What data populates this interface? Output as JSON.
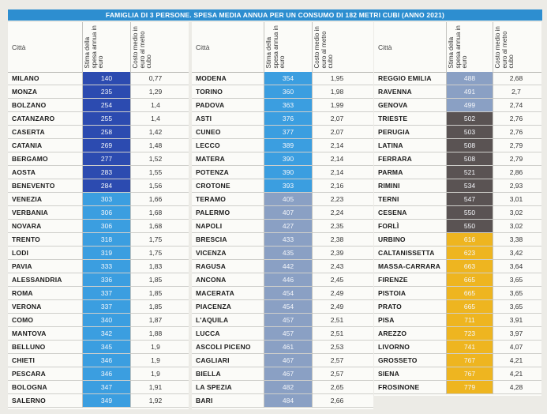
{
  "title": "FAMIGLIA DI 3 PERSONE. SPESA MEDIA ANNUA PER UN CONSUMO DI 182 METRI CUBI (ANNO 2021)",
  "headers": {
    "city": "Città",
    "estimate": "Stima della spesa annua in euro",
    "cost": "Costo medio in euro al metro cubo"
  },
  "colors": {
    "dark_blue": "#2c4bb0",
    "light_blue": "#3b9ee0",
    "grey_blue": "#8aa0c4",
    "dark_grey": "#5a5353",
    "yellow": "#eeb520"
  },
  "columns": [
    {
      "rows": [
        {
          "city": "MILANO",
          "value": "140",
          "cost": "0,77",
          "color": "dark_blue"
        },
        {
          "city": "MONZA",
          "value": "235",
          "cost": "1,29",
          "color": "dark_blue"
        },
        {
          "city": "BOLZANO",
          "value": "254",
          "cost": "1,4",
          "color": "dark_blue"
        },
        {
          "city": "CATANZARO",
          "value": "255",
          "cost": "1,4",
          "color": "dark_blue"
        },
        {
          "city": "CASERTA",
          "value": "258",
          "cost": "1,42",
          "color": "dark_blue"
        },
        {
          "city": "CATANIA",
          "value": "269",
          "cost": "1,48",
          "color": "dark_blue"
        },
        {
          "city": "BERGAMO",
          "value": "277",
          "cost": "1,52",
          "color": "dark_blue"
        },
        {
          "city": "AOSTA",
          "value": "283",
          "cost": "1,55",
          "color": "dark_blue"
        },
        {
          "city": "BENEVENTO",
          "value": "284",
          "cost": "1,56",
          "color": "dark_blue"
        },
        {
          "city": "VENEZIA",
          "value": "303",
          "cost": "1,66",
          "color": "light_blue"
        },
        {
          "city": "VERBANIA",
          "value": "306",
          "cost": "1,68",
          "color": "light_blue"
        },
        {
          "city": "NOVARA",
          "value": "306",
          "cost": "1,68",
          "color": "light_blue"
        },
        {
          "city": "TRENTO",
          "value": "318",
          "cost": "1,75",
          "color": "light_blue"
        },
        {
          "city": "LODI",
          "value": "319",
          "cost": "1,75",
          "color": "light_blue"
        },
        {
          "city": "PAVIA",
          "value": "333",
          "cost": "1,83",
          "color": "light_blue"
        },
        {
          "city": "ALESSANDRIA",
          "value": "336",
          "cost": "1,85",
          "color": "light_blue"
        },
        {
          "city": "ROMA",
          "value": "337",
          "cost": "1,85",
          "color": "light_blue"
        },
        {
          "city": "VERONA",
          "value": "337",
          "cost": "1,85",
          "color": "light_blue"
        },
        {
          "city": "COMO",
          "value": "340",
          "cost": "1,87",
          "color": "light_blue"
        },
        {
          "city": "MANTOVA",
          "value": "342",
          "cost": "1,88",
          "color": "light_blue"
        },
        {
          "city": "BELLUNO",
          "value": "345",
          "cost": "1,9",
          "color": "light_blue"
        },
        {
          "city": "CHIETI",
          "value": "346",
          "cost": "1,9",
          "color": "light_blue"
        },
        {
          "city": "PESCARA",
          "value": "346",
          "cost": "1,9",
          "color": "light_blue"
        },
        {
          "city": "BOLOGNA",
          "value": "347",
          "cost": "1,91",
          "color": "light_blue"
        },
        {
          "city": "SALERNO",
          "value": "349",
          "cost": "1,92",
          "color": "light_blue"
        }
      ]
    },
    {
      "rows": [
        {
          "city": "MODENA",
          "value": "354",
          "cost": "1,95",
          "color": "light_blue"
        },
        {
          "city": "TORINO",
          "value": "360",
          "cost": "1,98",
          "color": "light_blue"
        },
        {
          "city": "PADOVA",
          "value": "363",
          "cost": "1,99",
          "color": "light_blue"
        },
        {
          "city": "ASTI",
          "value": "376",
          "cost": "2,07",
          "color": "light_blue"
        },
        {
          "city": "CUNEO",
          "value": "377",
          "cost": "2,07",
          "color": "light_blue"
        },
        {
          "city": "LECCO",
          "value": "389",
          "cost": "2,14",
          "color": "light_blue"
        },
        {
          "city": "MATERA",
          "value": "390",
          "cost": "2,14",
          "color": "light_blue"
        },
        {
          "city": "POTENZA",
          "value": "390",
          "cost": "2,14",
          "color": "light_blue"
        },
        {
          "city": "CROTONE",
          "value": "393",
          "cost": "2,16",
          "color": "light_blue"
        },
        {
          "city": "TERAMO",
          "value": "405",
          "cost": "2,23",
          "color": "grey_blue"
        },
        {
          "city": "PALERMO",
          "value": "407",
          "cost": "2,24",
          "color": "grey_blue"
        },
        {
          "city": "NAPOLI",
          "value": "427",
          "cost": "2,35",
          "color": "grey_blue"
        },
        {
          "city": "BRESCIA",
          "value": "433",
          "cost": "2,38",
          "color": "grey_blue"
        },
        {
          "city": "VICENZA",
          "value": "435",
          "cost": "2,39",
          "color": "grey_blue"
        },
        {
          "city": "RAGUSA",
          "value": "442",
          "cost": "2,43",
          "color": "grey_blue"
        },
        {
          "city": "ANCONA",
          "value": "446",
          "cost": "2,45",
          "color": "grey_blue"
        },
        {
          "city": "MACERATA",
          "value": "454",
          "cost": "2,49",
          "color": "grey_blue"
        },
        {
          "city": "PIACENZA",
          "value": "454",
          "cost": "2,49",
          "color": "grey_blue"
        },
        {
          "city": "L'AQUILA",
          "value": "457",
          "cost": "2,51",
          "color": "grey_blue"
        },
        {
          "city": "LUCCA",
          "value": "457",
          "cost": "2,51",
          "color": "grey_blue"
        },
        {
          "city": "ASCOLI PICENO",
          "value": "461",
          "cost": "2,53",
          "color": "grey_blue"
        },
        {
          "city": "CAGLIARI",
          "value": "467",
          "cost": "2,57",
          "color": "grey_blue"
        },
        {
          "city": "BIELLA",
          "value": "467",
          "cost": "2,57",
          "color": "grey_blue"
        },
        {
          "city": "LA SPEZIA",
          "value": "482",
          "cost": "2,65",
          "color": "grey_blue"
        },
        {
          "city": "BARI",
          "value": "484",
          "cost": "2,66",
          "color": "grey_blue"
        }
      ]
    },
    {
      "rows": [
        {
          "city": "REGGIO EMILIA",
          "value": "488",
          "cost": "2,68",
          "color": "grey_blue"
        },
        {
          "city": "RAVENNA",
          "value": "491",
          "cost": "2,7",
          "color": "grey_blue"
        },
        {
          "city": "GENOVA",
          "value": "499",
          "cost": "2,74",
          "color": "grey_blue"
        },
        {
          "city": "TRIESTE",
          "value": "502",
          "cost": "2,76",
          "color": "dark_grey"
        },
        {
          "city": "PERUGIA",
          "value": "503",
          "cost": "2,76",
          "color": "dark_grey"
        },
        {
          "city": "LATINA",
          "value": "508",
          "cost": "2,79",
          "color": "dark_grey"
        },
        {
          "city": "FERRARA",
          "value": "508",
          "cost": "2,79",
          "color": "dark_grey"
        },
        {
          "city": "PARMA",
          "value": "521",
          "cost": "2,86",
          "color": "dark_grey"
        },
        {
          "city": "RIMINI",
          "value": "534",
          "cost": "2,93",
          "color": "dark_grey"
        },
        {
          "city": "TERNI",
          "value": "547",
          "cost": "3,01",
          "color": "dark_grey"
        },
        {
          "city": "CESENA",
          "value": "550",
          "cost": "3,02",
          "color": "dark_grey"
        },
        {
          "city": "FORLÌ",
          "value": "550",
          "cost": "3,02",
          "color": "dark_grey"
        },
        {
          "city": "URBINO",
          "value": "616",
          "cost": "3,38",
          "color": "yellow"
        },
        {
          "city": "CALTANISSETTA",
          "value": "623",
          "cost": "3,42",
          "color": "yellow"
        },
        {
          "city": "MASSA-CARRARA",
          "value": "663",
          "cost": "3,64",
          "color": "yellow"
        },
        {
          "city": "FIRENZE",
          "value": "665",
          "cost": "3,65",
          "color": "yellow"
        },
        {
          "city": "PISTOIA",
          "value": "665",
          "cost": "3,65",
          "color": "yellow"
        },
        {
          "city": "PRATO",
          "value": "665",
          "cost": "3,65",
          "color": "yellow"
        },
        {
          "city": "PISA",
          "value": "711",
          "cost": "3,91",
          "color": "yellow"
        },
        {
          "city": "AREZZO",
          "value": "723",
          "cost": "3,97",
          "color": "yellow"
        },
        {
          "city": "LIVORNO",
          "value": "741",
          "cost": "4,07",
          "color": "yellow"
        },
        {
          "city": "GROSSETO",
          "value": "767",
          "cost": "4,21",
          "color": "yellow"
        },
        {
          "city": "SIENA",
          "value": "767",
          "cost": "4,21",
          "color": "yellow"
        },
        {
          "city": "FROSINONE",
          "value": "779",
          "cost": "4,28",
          "color": "yellow"
        }
      ]
    }
  ]
}
